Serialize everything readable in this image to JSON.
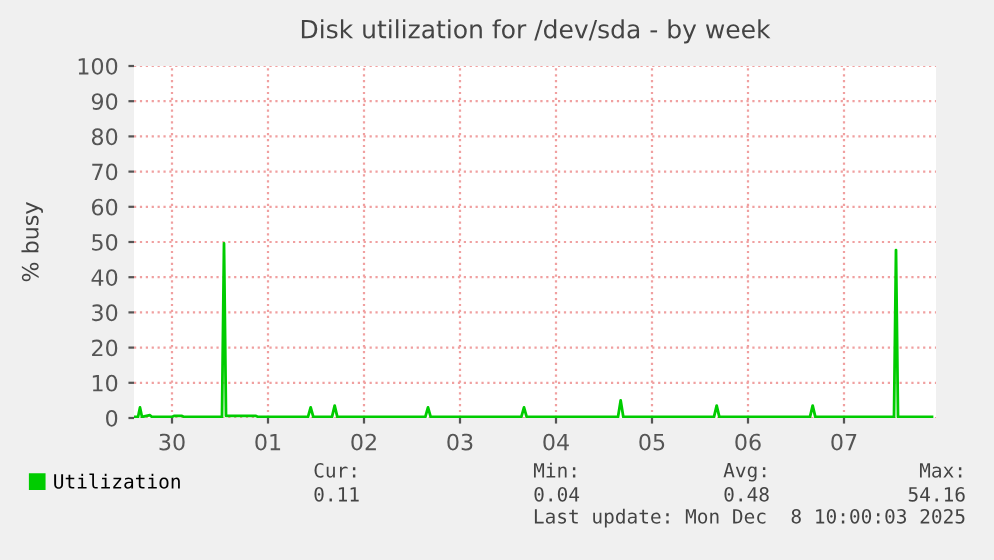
{
  "chart_data": {
    "type": "line",
    "title": "Disk utilization for /dev/sda - by week",
    "ylabel": "% busy",
    "xlim": [
      "2025-11-30T02:30",
      "2025-12-08T11:00"
    ],
    "xticks": [
      {
        "value": "2025-11-30T12:00",
        "label": "30"
      },
      {
        "value": "2025-12-01T12:00",
        "label": "01"
      },
      {
        "value": "2025-12-02T12:00",
        "label": "02"
      },
      {
        "value": "2025-12-03T12:00",
        "label": "03"
      },
      {
        "value": "2025-12-04T12:00",
        "label": "04"
      },
      {
        "value": "2025-12-05T12:00",
        "label": "05"
      },
      {
        "value": "2025-12-06T12:00",
        "label": "06"
      },
      {
        "value": "2025-12-07T12:00",
        "label": "07"
      }
    ],
    "ylim": [
      0,
      100
    ],
    "yticks": [
      0,
      10,
      20,
      30,
      40,
      50,
      60,
      70,
      80,
      90,
      100
    ],
    "grid": true,
    "legend": "bottom",
    "marker": "none",
    "line_style": "solid",
    "series": [
      {
        "name": "Utilization",
        "color": "#00cc00",
        "x": [
          "2025-11-30T02:30",
          "2025-11-30T03:30",
          "2025-11-30T04:00",
          "2025-11-30T04:30",
          "2025-11-30T06:30",
          "2025-11-30T07:00",
          "2025-11-30T12:00",
          "2025-11-30T12:30",
          "2025-11-30T14:30",
          "2025-11-30T15:00",
          "2025-12-01T00:30",
          "2025-12-01T01:00",
          "2025-12-01T01:30",
          "2025-12-01T09:00",
          "2025-12-01T09:30",
          "2025-12-01T22:00",
          "2025-12-01T22:40",
          "2025-12-01T23:20",
          "2025-12-02T04:00",
          "2025-12-02T04:40",
          "2025-12-02T05:20",
          "2025-12-03T03:20",
          "2025-12-03T04:00",
          "2025-12-03T04:40",
          "2025-12-04T03:20",
          "2025-12-04T04:00",
          "2025-12-04T04:40",
          "2025-12-05T03:30",
          "2025-12-05T04:10",
          "2025-12-05T04:50",
          "2025-12-06T03:30",
          "2025-12-06T04:10",
          "2025-12-06T04:50",
          "2025-12-07T03:30",
          "2025-12-07T04:10",
          "2025-12-07T04:50",
          "2025-12-08T00:30",
          "2025-12-08T01:00",
          "2025-12-08T01:30",
          "2025-12-08T10:00"
        ],
        "values": [
          0.3,
          0.3,
          3,
          0.3,
          0.8,
          0.3,
          0.3,
          0.6,
          0.6,
          0.3,
          0.3,
          49.6,
          0.6,
          0.6,
          0.3,
          0.3,
          3,
          0.3,
          0.3,
          3.5,
          0.3,
          0.3,
          3,
          0.3,
          0.3,
          3,
          0.3,
          0.3,
          5,
          0.3,
          0.3,
          3.5,
          0.3,
          0.3,
          3.5,
          0.3,
          0.3,
          47.7,
          0.3,
          0.3
        ]
      }
    ],
    "annotations": [
      "Cur:",
      "0.11",
      "Min:",
      "0.04",
      "Avg:",
      "0.48",
      "Max:",
      "54.16",
      "Last update: Mon Dec  8 10:00:03 2025"
    ]
  }
}
